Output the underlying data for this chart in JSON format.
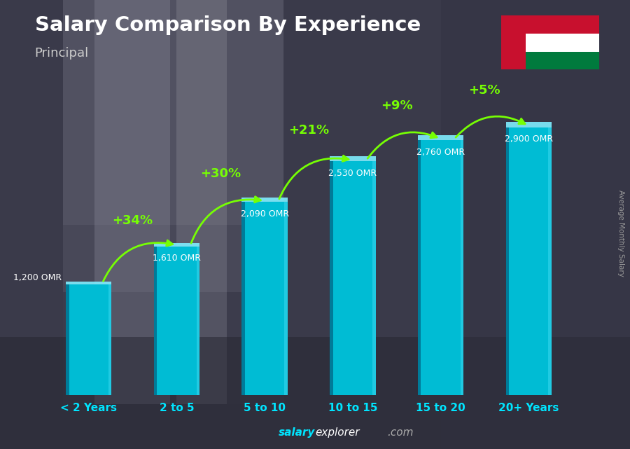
{
  "title": "Salary Comparison By Experience",
  "subtitle": "Principal",
  "categories": [
    "< 2 Years",
    "2 to 5",
    "5 to 10",
    "10 to 15",
    "15 to 20",
    "20+ Years"
  ],
  "values": [
    1200,
    1610,
    2090,
    2530,
    2760,
    2900
  ],
  "value_labels": [
    "1,200 OMR",
    "1,610 OMR",
    "2,090 OMR",
    "2,530 OMR",
    "2,760 OMR",
    "2,900 OMR"
  ],
  "pct_labels": [
    "+34%",
    "+30%",
    "+21%",
    "+9%",
    "+5%"
  ],
  "bar_color": "#00bcd4",
  "bar_edge_color": "#0097a7",
  "bar_right_color": "#26c6da",
  "bar_top_color": "#b2ebf2",
  "bg_overlay_color": "#1a1a2e",
  "bg_overlay_alpha": 0.55,
  "title_color": "#ffffff",
  "subtitle_color": "#cccccc",
  "label_color": "#ffffff",
  "pct_color": "#76ff03",
  "xlabel_color": "#00e5ff",
  "footer_salary_color": "#00e5ff",
  "footer_explorer_color": "#ffffff",
  "footer_com_color": "#aaaaaa",
  "ylabel_text": "Average Monthly Salary",
  "ylim": [
    0,
    3500
  ],
  "bar_width": 0.52,
  "arrow_color": "#76ff03",
  "value_label_color": "#ffffff",
  "flag_red": "#c8102e",
  "flag_green": "#007a3d",
  "flag_white": "#ffffff"
}
